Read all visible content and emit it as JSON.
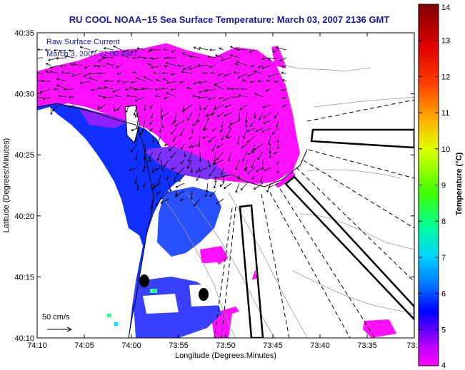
{
  "title": "RU COOL  NOAA−15  Sea Surface Temperature:  March 03, 2007 2136 GMT",
  "overlay": {
    "line1": "Raw Surface Current",
    "line2": "March 3, 2007 22:00 GMT"
  },
  "scale": {
    "label": "50 cm/s"
  },
  "axes": {
    "xlabel": "Longitude (Degrees:Minutes)",
    "ylabel": "Latitude (Degrees:Minutes)",
    "xticks": [
      "74:10",
      "74:05",
      "74:00",
      "73:55",
      "73:50",
      "73:45",
      "73:40",
      "73:35",
      "73:3"
    ],
    "yticks": [
      "40:35",
      "40:30",
      "40:25",
      "40:20",
      "40:15",
      "40:10"
    ]
  },
  "colorbar": {
    "title": "Temperature (°C)",
    "ticks": [
      "14",
      "13",
      "12",
      "11",
      "10",
      "9",
      "8",
      "7",
      "6",
      "5",
      "4"
    ],
    "min": 4,
    "max": 14,
    "colors": [
      "#ff00ff",
      "#b000ff",
      "#3000ff",
      "#0060ff",
      "#00d0ff",
      "#00ff80",
      "#80ff00",
      "#ffff00",
      "#ff8000",
      "#ff0000",
      "#800000"
    ]
  },
  "colors": {
    "warm_water": "#ff10ff",
    "cool_water": "#1030ff",
    "title_text": "#1a1aa0"
  }
}
